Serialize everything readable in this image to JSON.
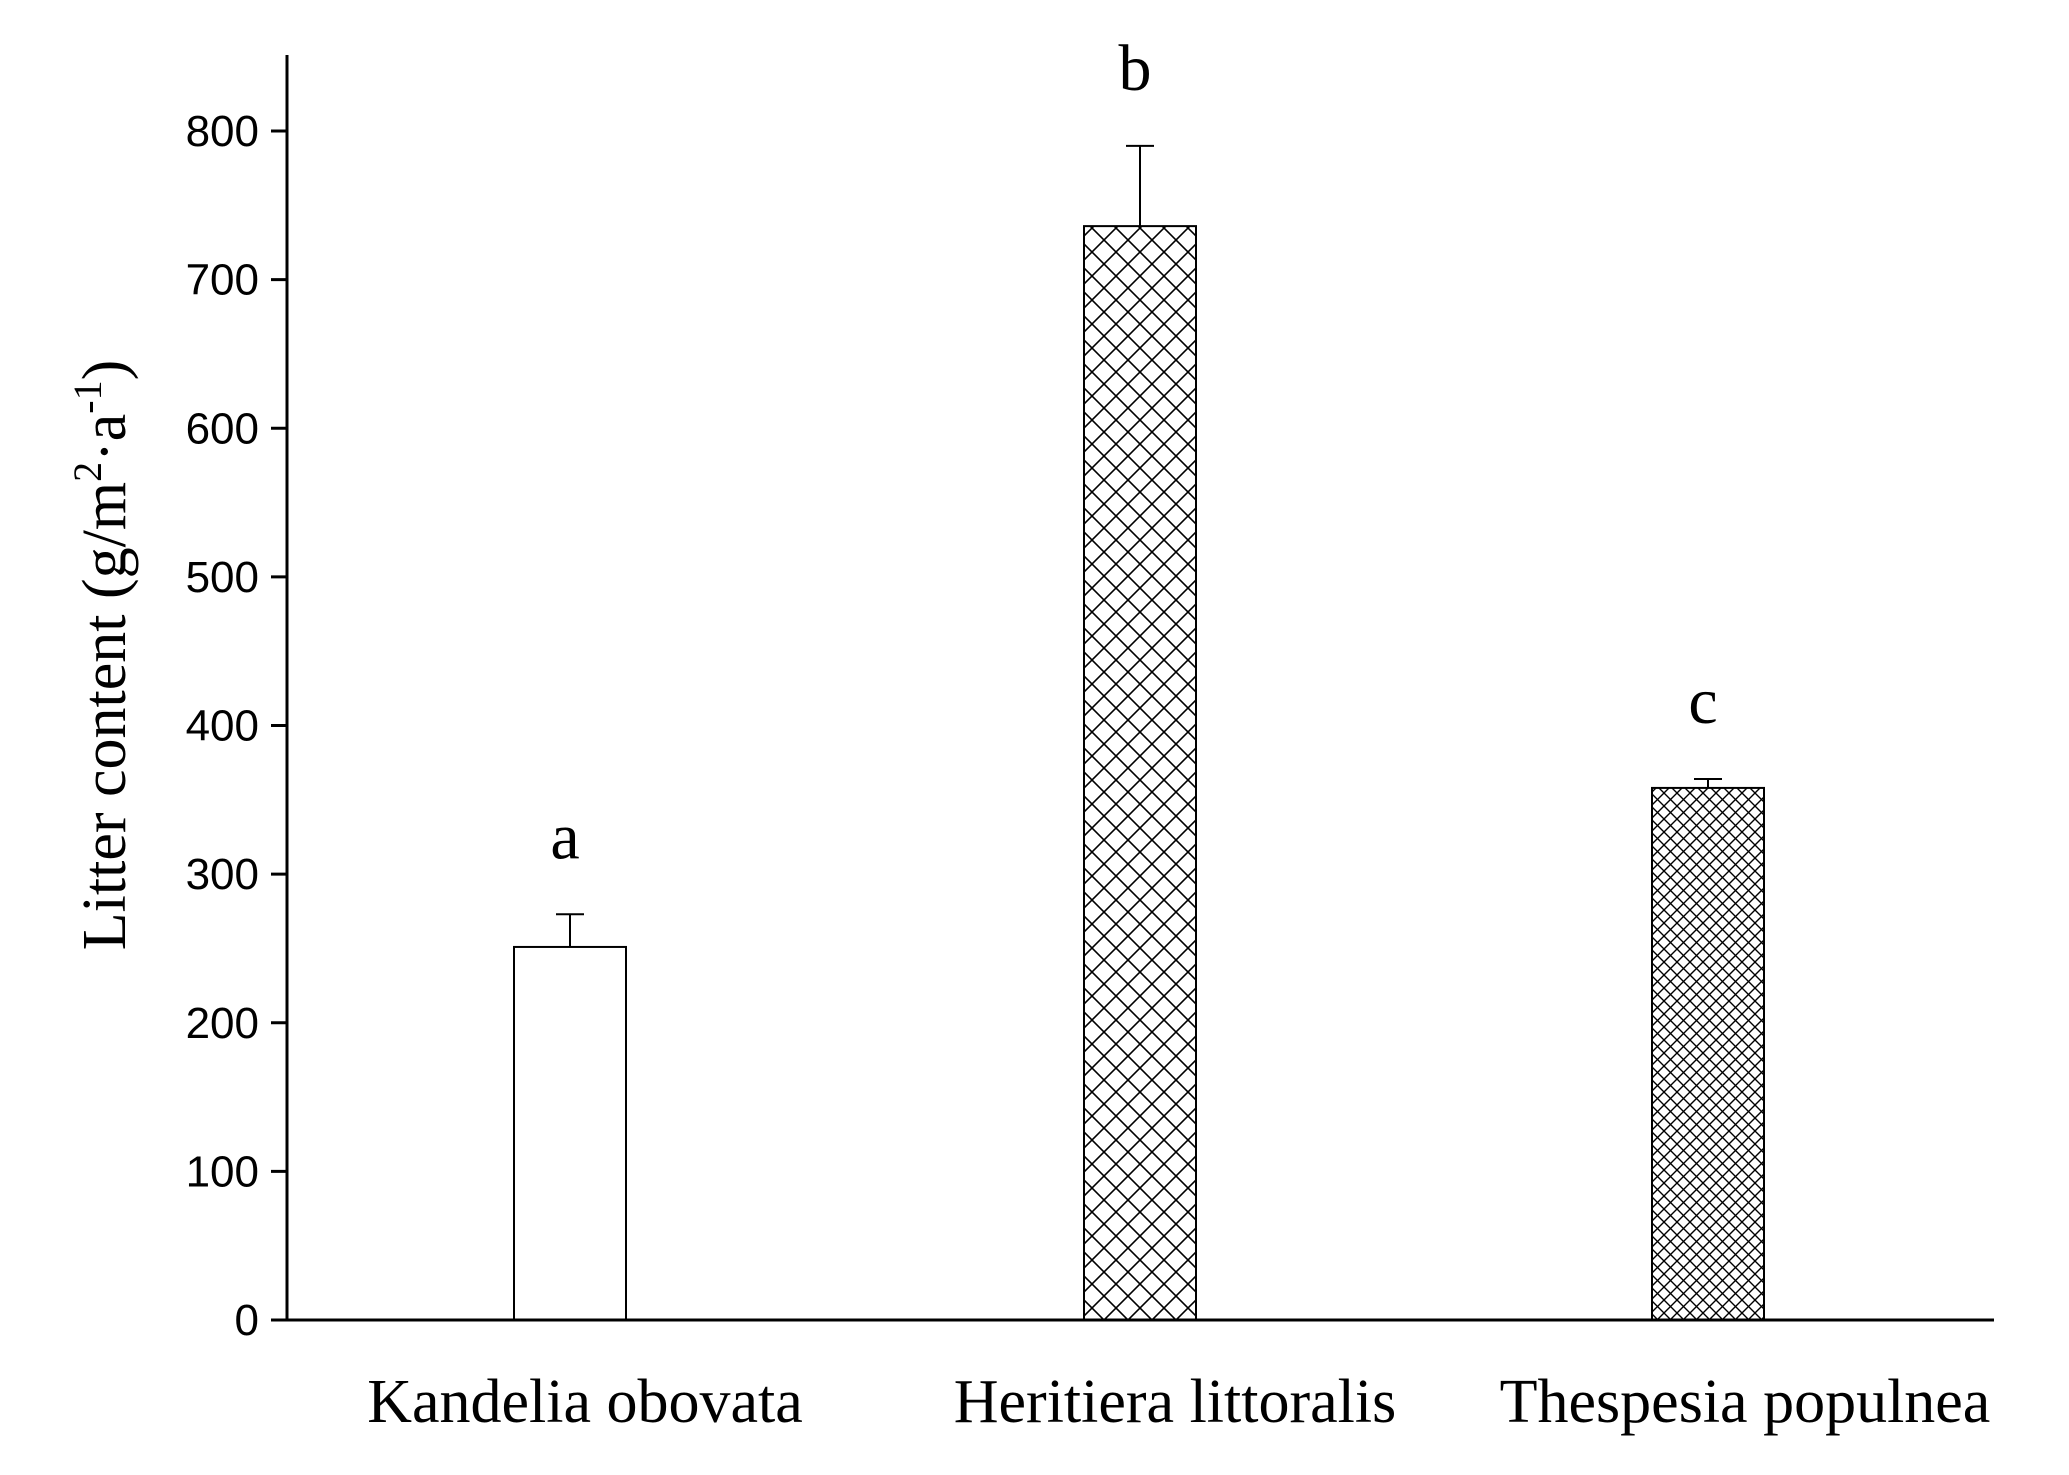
{
  "chart_data": {
    "type": "bar",
    "categories": [
      "Kandelia obovata",
      "Heritiera littoralis",
      "Thespesia populnea"
    ],
    "values": [
      251,
      736,
      358
    ],
    "errors": [
      22,
      54,
      6
    ],
    "significance_labels": [
      "a",
      "b",
      "c"
    ],
    "ylabel": {
      "main": "Litter content (g/m",
      "sup1": "2",
      "mid": "·a",
      "sup2": "-1",
      "end": ")"
    },
    "ylim": [
      0,
      850
    ],
    "yticks": [
      "0",
      "100",
      "200",
      "300",
      "400",
      "500",
      "600",
      "700",
      "800"
    ],
    "grid": false,
    "bar_fills": [
      "plain",
      "wide-crosshatch",
      "fine-crosshatch"
    ],
    "colors": {
      "bar_fill": "#ffffff",
      "stroke": "#000000"
    }
  }
}
